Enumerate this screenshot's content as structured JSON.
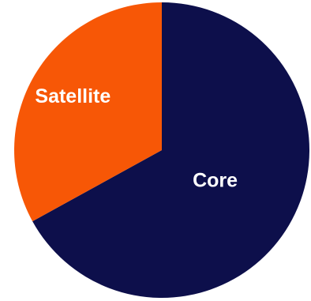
{
  "chart_data": {
    "type": "pie",
    "slices": [
      {
        "label": "Core",
        "value": 67,
        "color": "#0d0f4b"
      },
      {
        "label": "Satellite",
        "value": 33,
        "color": "#f75706"
      }
    ],
    "start_angle_deg": 0,
    "direction": "clockwise",
    "title": "",
    "legend": "none"
  }
}
